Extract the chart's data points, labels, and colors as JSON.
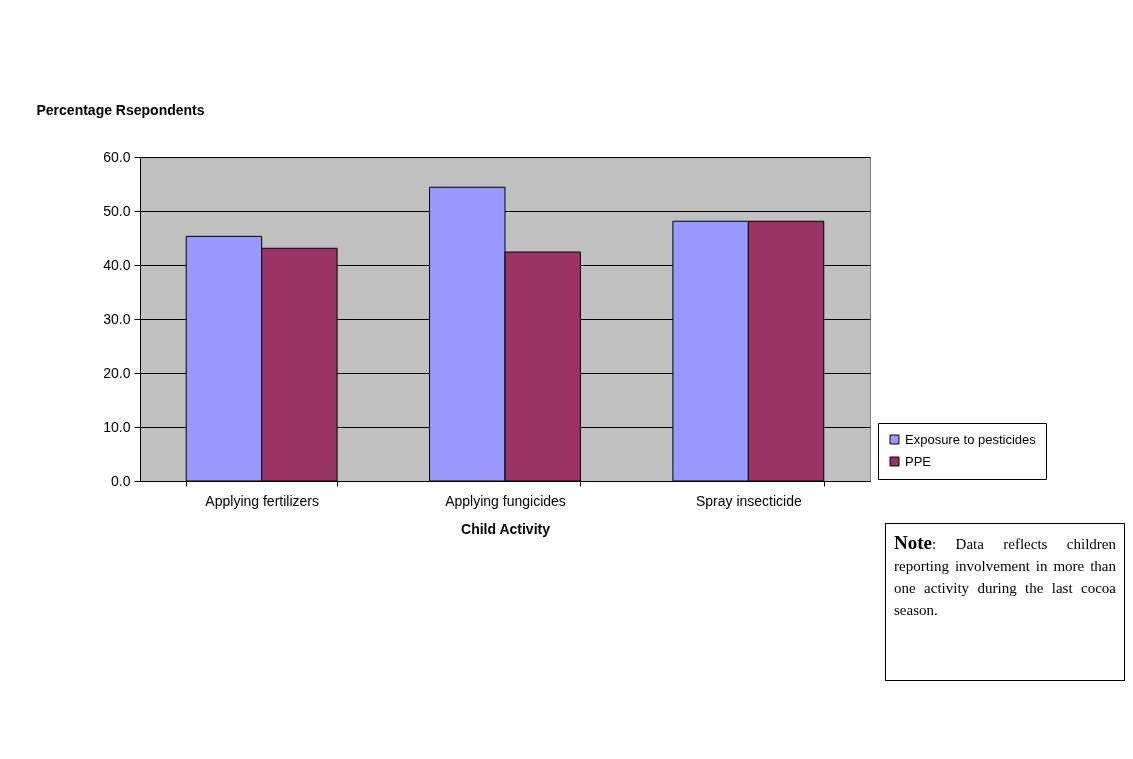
{
  "chart_data": {
    "type": "bar",
    "ylabel": "Percentage Rsepondents",
    "xlabel": "Child Activity",
    "categories": [
      "Applying fertilizers",
      "Applying fungicides",
      "Spray insecticide"
    ],
    "series": [
      {
        "name": "Exposure to pesticides",
        "color": "#9999ff",
        "values": [
          45.3,
          54.4,
          48.1
        ]
      },
      {
        "name": "PPE",
        "color": "#993366",
        "values": [
          43.1,
          42.4,
          48.1
        ]
      }
    ],
    "ylim": [
      0,
      60
    ],
    "yticks": [
      {
        "value": 0,
        "label": "0.0"
      },
      {
        "value": 10,
        "label": "10.0"
      },
      {
        "value": 20,
        "label": "20.0"
      },
      {
        "value": 30,
        "label": "30.0"
      },
      {
        "value": 40,
        "label": "40.0"
      },
      {
        "value": 50,
        "label": "50.0"
      },
      {
        "value": 60,
        "label": "60.0"
      }
    ],
    "grid": "y",
    "legend": "right",
    "annotations": [
      "Note: Data reflects children reporting involvement in more than one activity during the last cocoa season."
    ]
  }
}
